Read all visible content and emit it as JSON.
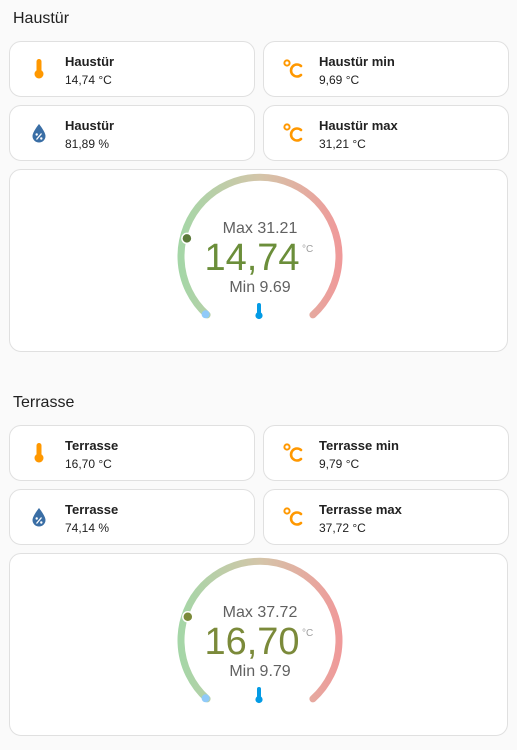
{
  "colors": {
    "accent_orange": "#ff9800",
    "humidity_blue": "#3a6ea5",
    "thermo_blue": "#039be5",
    "arc_cold": "#a5d6a7",
    "arc_mid": "#d4c5a9",
    "arc_hot": "#ef9a9a",
    "value_green_1": "#6b8e3a",
    "value_green_2": "#7b8a3a"
  },
  "sections": [
    {
      "title": "Haustür",
      "tiles": [
        {
          "icon": "thermometer-icon",
          "name": "Haustür",
          "value": "14,74 °C"
        },
        {
          "icon": "celsius-icon",
          "name": "Haustür min",
          "value": "9,69 °C"
        },
        {
          "icon": "humidity-icon",
          "name": "Haustür",
          "value": "81,89 %"
        },
        {
          "icon": "celsius-icon",
          "name": "Haustür max",
          "value": "31,21 °C"
        }
      ],
      "gauge": {
        "max_label": "Max 31.21",
        "value": "14,74",
        "unit": "°C",
        "min_label": "Min 9.69",
        "min": 9.69,
        "max": 31.21,
        "current": 14.74
      }
    },
    {
      "title": "Terrasse",
      "tiles": [
        {
          "icon": "thermometer-icon",
          "name": "Terrasse",
          "value": "16,70 °C"
        },
        {
          "icon": "celsius-icon",
          "name": "Terrasse min",
          "value": "9,79 °C"
        },
        {
          "icon": "humidity-icon",
          "name": "Terrasse",
          "value": "74,14 %"
        },
        {
          "icon": "celsius-icon",
          "name": "Terrasse max",
          "value": "37,72 °C"
        }
      ],
      "gauge": {
        "max_label": "Max 37.72",
        "value": "16,70",
        "unit": "°C",
        "min_label": "Min 9.79",
        "min": 9.79,
        "max": 37.72,
        "current": 16.7
      }
    }
  ]
}
